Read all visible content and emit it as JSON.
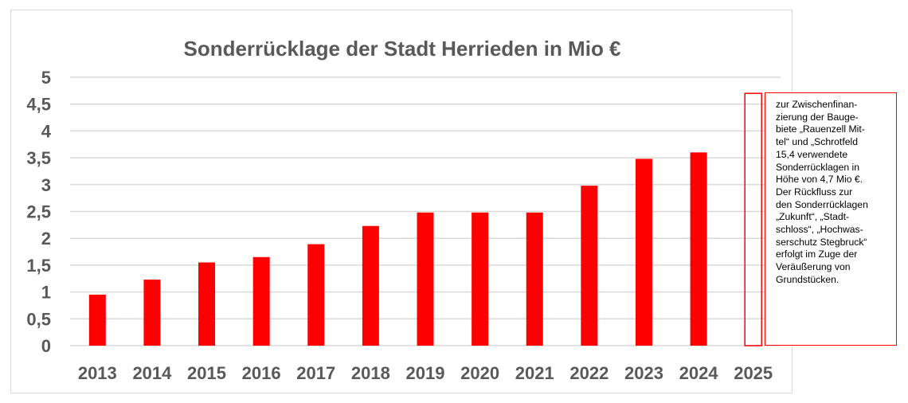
{
  "chart_data": {
    "type": "bar",
    "title": "Sonderrücklage der Stadt Herrieden in Mio €",
    "xlabel": "",
    "ylabel": "",
    "categories": [
      "2013",
      "2014",
      "2015",
      "2016",
      "2017",
      "2018",
      "2019",
      "2020",
      "2021",
      "2022",
      "2023",
      "2024",
      "2025"
    ],
    "series": [
      {
        "values": [
          0.95,
          1.23,
          1.55,
          1.65,
          1.89,
          2.23,
          2.48,
          2.48,
          2.48,
          2.98,
          3.48,
          3.6,
          4.7
        ]
      }
    ],
    "bar_styles": [
      "filled",
      "filled",
      "filled",
      "filled",
      "filled",
      "filled",
      "filled",
      "filled",
      "filled",
      "filled",
      "filled",
      "filled",
      "outline"
    ],
    "ylim": [
      0,
      5
    ],
    "yticks": [
      "0",
      "0,5",
      "1",
      "1,5",
      "2",
      "2,5",
      "3",
      "3,5",
      "4",
      "4,5",
      "5"
    ],
    "grid": true,
    "legend": "none",
    "bar_color": "#ff0000",
    "grid_color": "#d9d9d9",
    "text_color": "#595959"
  },
  "note": {
    "lines": [
      "zur Zwischenfinan-",
      "zierung der Bauge-",
      "biete „Rauenzell Mit-",
      "tel“ und „Schrotfeld",
      "15,4 verwendete",
      "Sonderrücklagen in",
      "Höhe von 4,7 Mio €.",
      "Der Rückfluss zur",
      "den Sonderrücklagen",
      "„Zukunft“, „Stadt-",
      "schloss“, „Hochwas-",
      "serschutz Stegbruck“",
      "erfolgt im Zuge der",
      "Veräußerung von",
      "Grundstücken."
    ],
    "border_color": "#ff0000"
  }
}
